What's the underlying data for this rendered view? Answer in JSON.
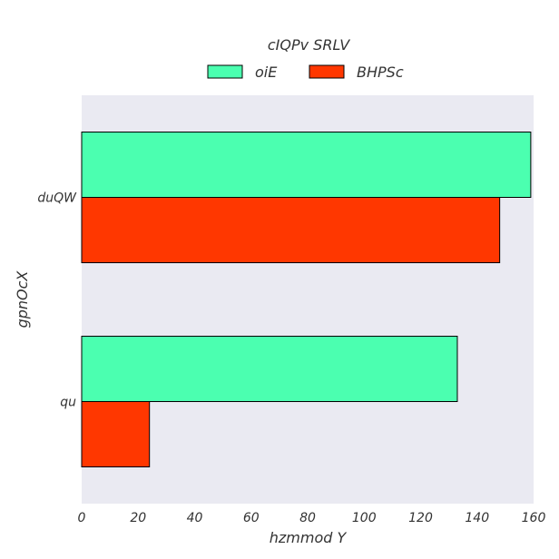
{
  "chart_data": {
    "type": "bar",
    "orientation": "horizontal",
    "categories": [
      "duQW",
      "qu"
    ],
    "series": [
      {
        "name": "oiE",
        "values": [
          159,
          133
        ],
        "color": "#4bffb0"
      },
      {
        "name": "BHPSc",
        "values": [
          148,
          24
        ],
        "color": "#ff3700"
      }
    ],
    "xlabel": "hzmmod Y",
    "ylabel": "gpnOcX",
    "xlim": [
      0,
      160
    ],
    "xticks": [
      0,
      20,
      40,
      60,
      80,
      100,
      120,
      140,
      160
    ],
    "legend": {
      "title": "cIQPv SRLV",
      "placement": "top-center"
    },
    "grid": false,
    "plot_background": "#eaeaf2"
  }
}
